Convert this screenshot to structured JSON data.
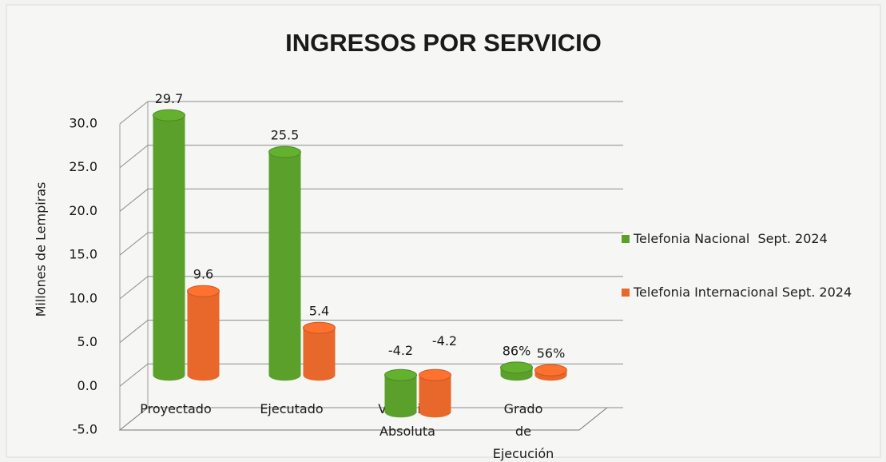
{
  "chart_data": {
    "type": "bar",
    "title": "INGRESOS POR SERVICIO",
    "ylabel": "Millones de Lempiras",
    "categories": [
      "Proyectado",
      "Ejecutado",
      "Variación Absoluta",
      "Grado de Ejecución"
    ],
    "series": [
      {
        "name": "Telefonia Nacional  Sept. 2024",
        "color": "#5ba02b",
        "values": [
          29.7,
          25.5,
          -4.2,
          0.86
        ],
        "value_labels": [
          "29.7",
          "25.5",
          "-4.2",
          "86%"
        ]
      },
      {
        "name": "Telefonia Internacional Sept. 2024",
        "color": "#e8672a",
        "values": [
          9.6,
          5.4,
          -4.2,
          0.56
        ],
        "value_labels": [
          "9.6",
          "5.4",
          "-4.2",
          "56%"
        ]
      }
    ],
    "ylim": [
      -5,
      30
    ],
    "yticks": [
      {
        "value": -5,
        "label": "-5.0"
      },
      {
        "value": 0,
        "label": "0.0"
      },
      {
        "value": 5,
        "label": "5.0"
      },
      {
        "value": 10,
        "label": "10.0"
      },
      {
        "value": 15,
        "label": "15.0"
      },
      {
        "value": 20,
        "label": "20.0"
      },
      {
        "value": 25,
        "label": "25.0"
      },
      {
        "value": 30,
        "label": "30.0"
      }
    ],
    "grid": true,
    "legend": "right"
  }
}
